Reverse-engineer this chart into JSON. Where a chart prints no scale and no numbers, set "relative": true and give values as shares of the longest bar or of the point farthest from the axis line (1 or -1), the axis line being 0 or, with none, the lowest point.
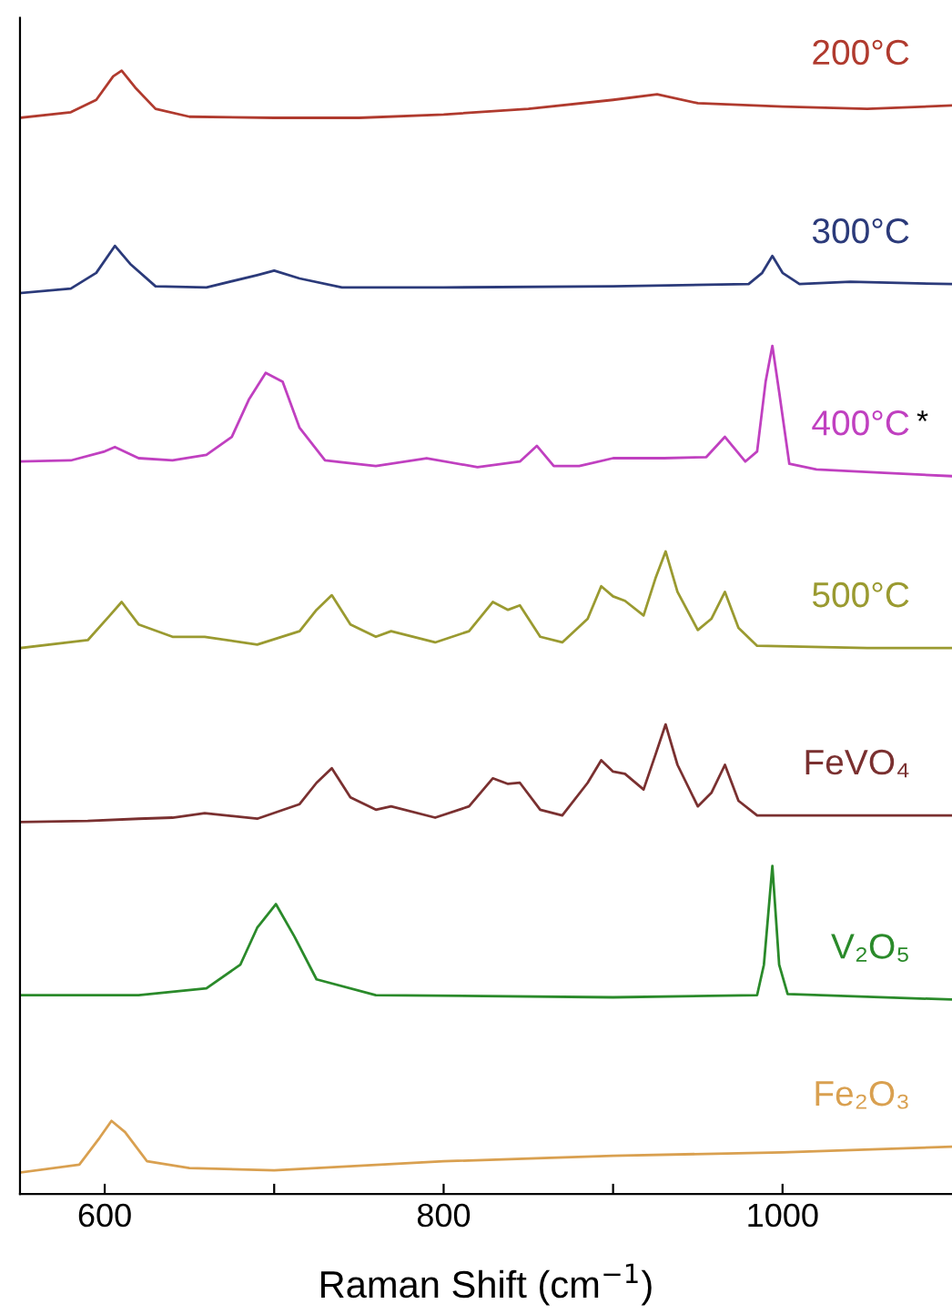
{
  "chart_data": {
    "type": "line",
    "relative": true,
    "xlabel": "Raman Shift (cm$^{−1}$)",
    "xlim": [
      550,
      1100
    ],
    "xticks": [
      600,
      {
        "value": 700,
        "label": null
      },
      800,
      {
        "value": 900,
        "label": null
      },
      1000
    ],
    "grid": false,
    "legend": false,
    "marker": "none",
    "line_style": "solid",
    "tick_labels": "x",
    "annotations": [
      "*"
    ],
    "series": [
      {
        "name": "200°C",
        "color": "#b03a2e",
        "x": [
          550,
          580,
          595,
          605,
          610,
          618,
          630,
          650,
          700,
          750,
          800,
          850,
          900,
          926,
          950,
          1000,
          1050,
          1100
        ],
        "values": [
          0.958,
          0.963,
          0.974,
          0.995,
          1.0,
          0.985,
          0.966,
          0.959,
          0.958,
          0.958,
          0.961,
          0.966,
          0.974,
          0.979,
          0.971,
          0.968,
          0.966,
          0.969
        ]
      },
      {
        "name": "300°C",
        "color": "#2b3a7a",
        "x": [
          550,
          580,
          595,
          606,
          615,
          630,
          660,
          690,
          700,
          715,
          740,
          800,
          900,
          980,
          988,
          994,
          1000,
          1010,
          1040,
          1100
        ],
        "values": [
          0.802,
          0.806,
          0.82,
          0.844,
          0.828,
          0.808,
          0.807,
          0.818,
          0.822,
          0.815,
          0.807,
          0.807,
          0.808,
          0.81,
          0.82,
          0.835,
          0.82,
          0.81,
          0.812,
          0.81
        ]
      },
      {
        "name": "400°C",
        "color": "#c040c0",
        "x": [
          550,
          580,
          600,
          606,
          620,
          640,
          660,
          675,
          685,
          695,
          705,
          715,
          730,
          760,
          790,
          820,
          845,
          855,
          865,
          880,
          900,
          930,
          955,
          966,
          978,
          985,
          990,
          994,
          998,
          1004,
          1020,
          1060,
          1100
        ],
        "values": [
          0.652,
          0.653,
          0.661,
          0.665,
          0.655,
          0.653,
          0.658,
          0.674,
          0.707,
          0.731,
          0.723,
          0.682,
          0.653,
          0.648,
          0.655,
          0.647,
          0.652,
          0.666,
          0.648,
          0.648,
          0.655,
          0.655,
          0.656,
          0.674,
          0.652,
          0.661,
          0.723,
          0.755,
          0.714,
          0.65,
          0.645,
          0.642,
          0.639
        ]
      },
      {
        "name": "500°C",
        "color": "#9a9a30",
        "x": [
          550,
          590,
          603,
          610,
          620,
          640,
          659,
          690,
          715,
          725,
          734,
          745,
          760,
          769,
          795,
          815,
          829,
          838,
          845,
          857,
          870,
          885,
          893,
          900,
          907,
          918,
          925,
          931,
          938,
          950,
          958,
          966,
          974,
          985,
          1050,
          1100
        ],
        "values": [
          0.486,
          0.493,
          0.515,
          0.527,
          0.507,
          0.496,
          0.496,
          0.489,
          0.501,
          0.52,
          0.533,
          0.507,
          0.496,
          0.501,
          0.491,
          0.501,
          0.527,
          0.52,
          0.524,
          0.496,
          0.491,
          0.512,
          0.541,
          0.532,
          0.528,
          0.515,
          0.548,
          0.572,
          0.536,
          0.502,
          0.512,
          0.536,
          0.504,
          0.488,
          0.486,
          0.486
        ]
      },
      {
        "name": "FeVO₄",
        "color": "#7a3030",
        "x": [
          550,
          590,
          620,
          640,
          659,
          690,
          715,
          725,
          734,
          745,
          760,
          769,
          795,
          815,
          829,
          838,
          845,
          857,
          870,
          885,
          893,
          900,
          907,
          918,
          925,
          931,
          938,
          950,
          958,
          966,
          974,
          985,
          1050,
          1100
        ],
        "values": [
          0.331,
          0.332,
          0.334,
          0.335,
          0.339,
          0.334,
          0.347,
          0.366,
          0.379,
          0.353,
          0.342,
          0.345,
          0.335,
          0.345,
          0.37,
          0.365,
          0.366,
          0.342,
          0.337,
          0.366,
          0.386,
          0.376,
          0.374,
          0.36,
          0.391,
          0.418,
          0.382,
          0.345,
          0.357,
          0.382,
          0.35,
          0.337,
          0.337,
          0.337
        ]
      },
      {
        "name": "V₂O₅",
        "color": "#2a8a2a",
        "x": [
          550,
          620,
          660,
          680,
          690,
          701,
          712,
          725,
          760,
          900,
          985,
          989,
          994,
          998,
          1003,
          1100
        ],
        "values": [
          0.177,
          0.177,
          0.183,
          0.204,
          0.237,
          0.258,
          0.229,
          0.191,
          0.177,
          0.175,
          0.177,
          0.204,
          0.292,
          0.204,
          0.178,
          0.173
        ]
      },
      {
        "name": "Fe₂O₃",
        "color": "#d9a050",
        "x": [
          550,
          585,
          597,
          604,
          612,
          625,
          650,
          700,
          800,
          900,
          1000,
          1100
        ],
        "values": [
          0.019,
          0.026,
          0.05,
          0.065,
          0.055,
          0.029,
          0.023,
          0.021,
          0.029,
          0.034,
          0.037,
          0.042
        ]
      }
    ]
  }
}
